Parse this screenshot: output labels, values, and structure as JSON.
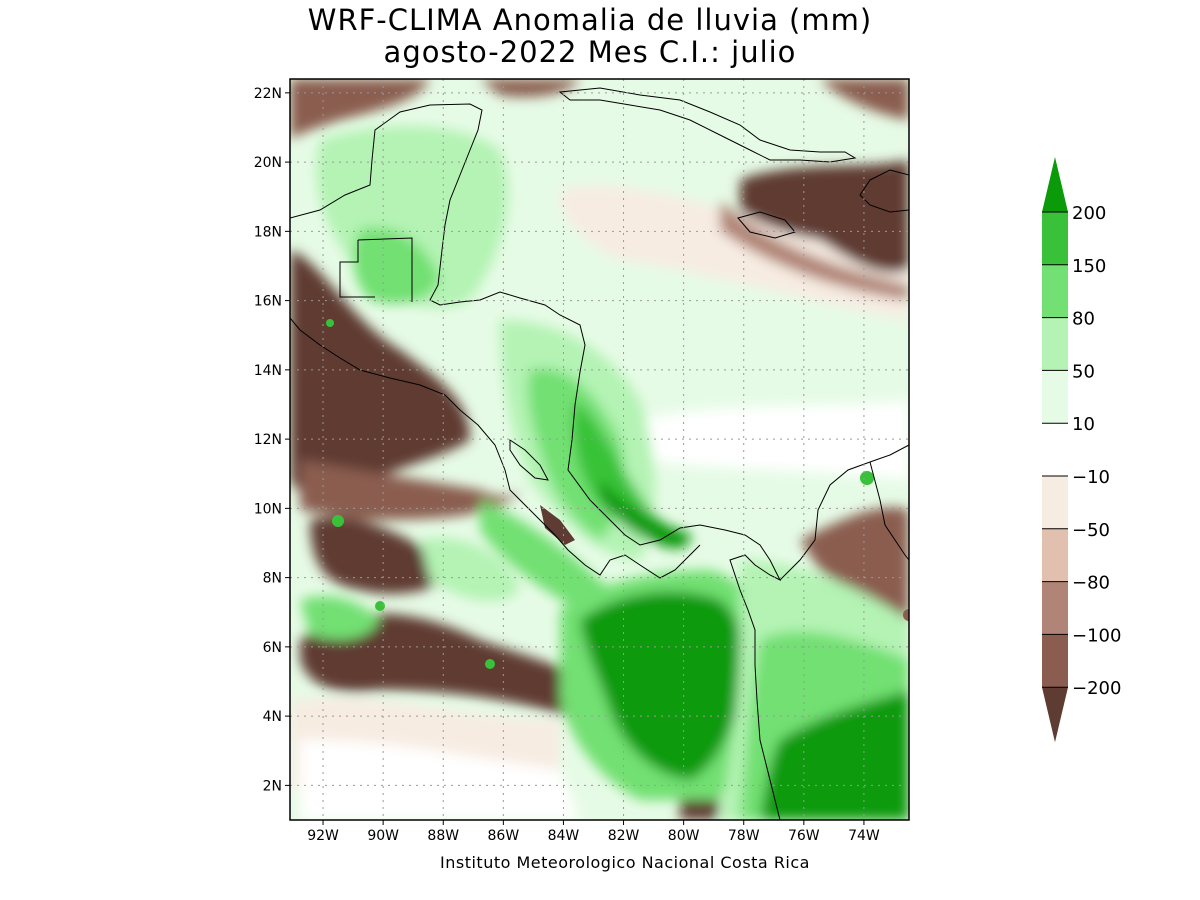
{
  "title": {
    "line1": "WRF-CLIMA Anomalia de lluvia (mm)",
    "line2": "agosto-2022 Mes C.I.: julio"
  },
  "credit": "Instituto Meteorologico Nacional Costa Rica",
  "map": {
    "lon_range": [
      -93.1,
      -72.5
    ],
    "lat_range": [
      1.0,
      22.4
    ],
    "lon_ticks": [
      {
        "value": -92,
        "label": "92W"
      },
      {
        "value": -90,
        "label": "90W"
      },
      {
        "value": -88,
        "label": "88W"
      },
      {
        "value": -86,
        "label": "86W"
      },
      {
        "value": -84,
        "label": "84W"
      },
      {
        "value": -82,
        "label": "82W"
      },
      {
        "value": -80,
        "label": "80W"
      },
      {
        "value": -78,
        "label": "78W"
      },
      {
        "value": -76,
        "label": "76W"
      },
      {
        "value": -74,
        "label": "74W"
      }
    ],
    "lat_ticks": [
      {
        "value": 2,
        "label": "2N"
      },
      {
        "value": 4,
        "label": "4N"
      },
      {
        "value": 6,
        "label": "6N"
      },
      {
        "value": 8,
        "label": "8N"
      },
      {
        "value": 10,
        "label": "10N"
      },
      {
        "value": 12,
        "label": "12N"
      },
      {
        "value": 14,
        "label": "14N"
      },
      {
        "value": 16,
        "label": "16N"
      },
      {
        "value": 18,
        "label": "18N"
      },
      {
        "value": 20,
        "label": "20N"
      },
      {
        "value": 22,
        "label": "22N"
      }
    ],
    "grid": "dotted"
  },
  "colorbar": {
    "levels": [
      "200",
      "150",
      "80",
      "50",
      "10",
      "-10",
      "-50",
      "-80",
      "-100",
      "-200"
    ],
    "colors": [
      "#0a9a0a",
      "#39c239",
      "#72e072",
      "#b4f3b4",
      "#e6fbe6",
      "#ffffff",
      "#f7ece2",
      "#e2c0b0",
      "#b08476",
      "#8a5d50",
      "#5e3b33"
    ]
  }
}
